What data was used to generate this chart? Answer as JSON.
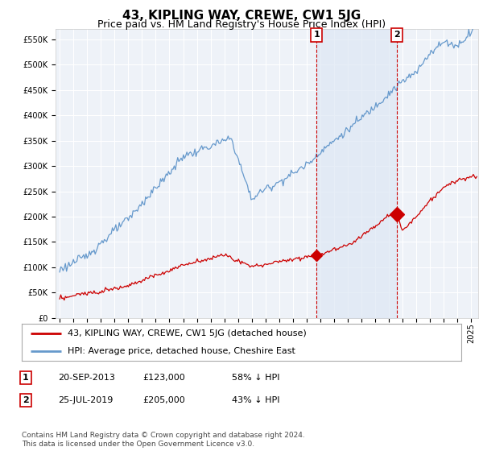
{
  "title": "43, KIPLING WAY, CREWE, CW1 5JG",
  "subtitle": "Price paid vs. HM Land Registry's House Price Index (HPI)",
  "ylim": [
    0,
    570000
  ],
  "yticks": [
    0,
    50000,
    100000,
    150000,
    200000,
    250000,
    300000,
    350000,
    400000,
    450000,
    500000,
    550000
  ],
  "xlim_start": 1994.7,
  "xlim_end": 2025.5,
  "background_color": "#ffffff",
  "plot_bg_color": "#eef2f8",
  "grid_color": "#ffffff",
  "hpi_color": "#6699cc",
  "fill_color": "#dde8f5",
  "price_color": "#cc0000",
  "marker1_date": 2013.72,
  "marker1_price": 123000,
  "marker2_date": 2019.56,
  "marker2_price": 205000,
  "legend_line1": "43, KIPLING WAY, CREWE, CW1 5JG (detached house)",
  "legend_line2": "HPI: Average price, detached house, Cheshire East",
  "table_rows": [
    [
      "1",
      "20-SEP-2013",
      "£123,000",
      "58% ↓ HPI"
    ],
    [
      "2",
      "25-JUL-2019",
      "£205,000",
      "43% ↓ HPI"
    ]
  ],
  "footnote": "Contains HM Land Registry data © Crown copyright and database right 2024.\nThis data is licensed under the Open Government Licence v3.0."
}
